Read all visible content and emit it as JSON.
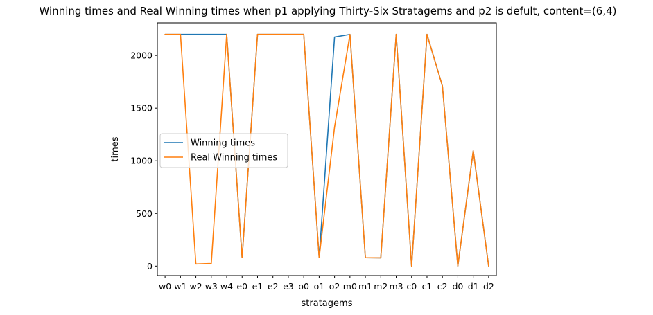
{
  "chart_data": {
    "type": "line",
    "title": "Winning times and Real Winning times when p1 applying Thirty-Six Stratagems and p2 is defult, content=(6,4)",
    "xlabel": "stratagems",
    "ylabel": "times",
    "categories": [
      "w0",
      "w1",
      "w2",
      "w3",
      "w4",
      "e0",
      "e1",
      "e2",
      "e3",
      "o0",
      "o1",
      "o2",
      "m0",
      "m1",
      "m2",
      "m3",
      "c0",
      "c1",
      "c2",
      "d0",
      "d1",
      "d2"
    ],
    "yticks": [
      0,
      500,
      1000,
      1500,
      2000
    ],
    "ylim": [
      -90,
      2310
    ],
    "legend_position": "center-left",
    "grid": false,
    "series": [
      {
        "name": "Winning times",
        "color": "#1f77b4",
        "values": [
          2200,
          2200,
          2200,
          2200,
          2200,
          80,
          2200,
          2200,
          2200,
          2200,
          80,
          2175,
          2200,
          80,
          78,
          2200,
          0,
          2200,
          1710,
          0,
          1095,
          0
        ]
      },
      {
        "name": "Real Winning times",
        "color": "#ff7f0e",
        "values": [
          2200,
          2200,
          20,
          25,
          2200,
          80,
          2200,
          2200,
          2200,
          2200,
          80,
          1320,
          2200,
          80,
          78,
          2200,
          0,
          2200,
          1710,
          0,
          1095,
          0
        ]
      }
    ]
  }
}
